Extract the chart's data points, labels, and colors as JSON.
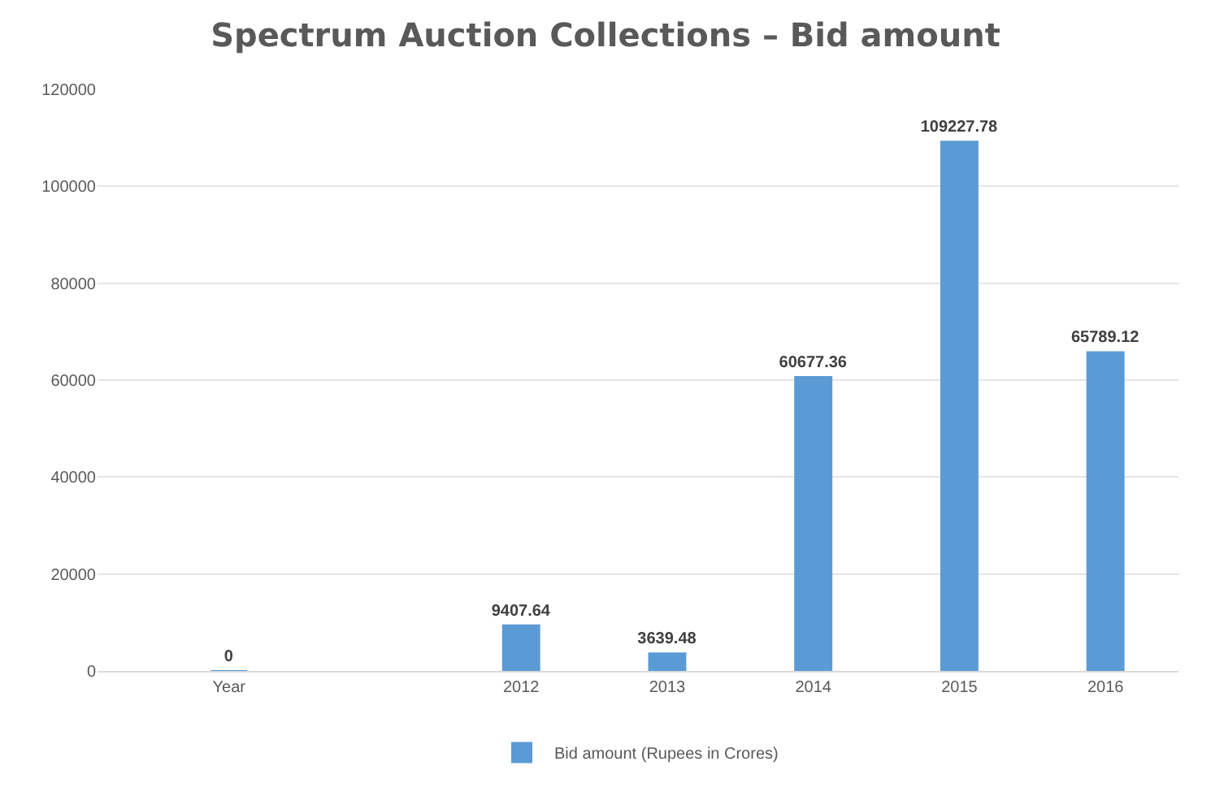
{
  "chart_data": {
    "type": "bar",
    "title": "Spectrum Auction Collections – Bid amount",
    "categories": [
      "Year",
      null,
      "2012",
      "2013",
      "2014",
      "2015",
      "2016"
    ],
    "series": [
      {
        "name": "Bid amount (Rupees in Crores)",
        "color": "#5b9bd5",
        "values": [
          0,
          null,
          9407.64,
          3639.48,
          60677.36,
          109227.78,
          65789.12
        ]
      }
    ],
    "ylim": [
      0,
      120000
    ],
    "yticks": [
      0,
      20000,
      40000,
      60000,
      80000,
      100000,
      120000
    ],
    "grid": "y",
    "legend": "bottom",
    "data_labels": true
  }
}
